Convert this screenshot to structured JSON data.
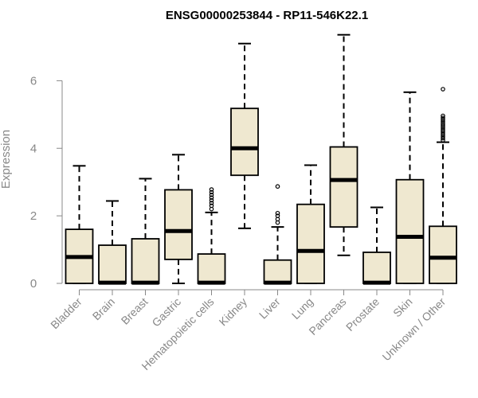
{
  "chart_data": {
    "type": "boxplot",
    "title": "ENSG00000253844 - RP11-546K22.1",
    "ylabel": "Expression",
    "xlabel": "",
    "ylim": [
      0,
      7.4
    ],
    "yticks": [
      0,
      2,
      4,
      6
    ],
    "box_fill": "#efe8d0",
    "categories": [
      "Bladder",
      "Brain",
      "Breast",
      "Gastric",
      "Hematopoietic cells",
      "Kidney",
      "Liver",
      "Lung",
      "Pancreas",
      "Prostate",
      "Skin",
      "Unknown / Other"
    ],
    "boxes": [
      {
        "whisker_low": 0,
        "q1": 0,
        "median": 0.78,
        "q3": 1.6,
        "whisker_high": 3.48,
        "outliers": []
      },
      {
        "whisker_low": 0,
        "q1": 0,
        "median": 0.02,
        "q3": 1.13,
        "whisker_high": 2.44,
        "outliers": []
      },
      {
        "whisker_low": 0,
        "q1": 0,
        "median": 0.02,
        "q3": 1.32,
        "whisker_high": 3.1,
        "outliers": []
      },
      {
        "whisker_low": 0,
        "q1": 0.71,
        "median": 1.55,
        "q3": 2.77,
        "whisker_high": 3.81,
        "outliers": []
      },
      {
        "whisker_low": 0,
        "q1": 0,
        "median": 0.02,
        "q3": 0.87,
        "whisker_high": 2.1,
        "outliers": [
          2.2,
          2.3,
          2.38,
          2.46,
          2.54,
          2.62,
          2.7,
          2.78
        ]
      },
      {
        "whisker_low": 1.63,
        "q1": 3.2,
        "median": 4.0,
        "q3": 5.18,
        "whisker_high": 7.1,
        "outliers": []
      },
      {
        "whisker_low": 0,
        "q1": 0,
        "median": 0.02,
        "q3": 0.69,
        "whisker_high": 1.67,
        "outliers": [
          1.8,
          1.9,
          2.0,
          2.08,
          2.87
        ]
      },
      {
        "whisker_low": 0,
        "q1": 0,
        "median": 0.96,
        "q3": 2.34,
        "whisker_high": 3.5,
        "outliers": []
      },
      {
        "whisker_low": 0.83,
        "q1": 1.67,
        "median": 3.06,
        "q3": 4.04,
        "whisker_high": 7.36,
        "outliers": []
      },
      {
        "whisker_low": 0,
        "q1": 0,
        "median": 0.02,
        "q3": 0.92,
        "whisker_high": 2.25,
        "outliers": []
      },
      {
        "whisker_low": 0,
        "q1": 0,
        "median": 1.38,
        "q3": 3.07,
        "whisker_high": 5.66,
        "outliers": []
      },
      {
        "whisker_low": 0,
        "q1": 0,
        "median": 0.76,
        "q3": 1.69,
        "whisker_high": 4.18,
        "outliers": [
          4.24,
          4.3,
          4.36,
          4.42,
          4.48,
          4.54,
          4.6,
          4.66,
          4.72,
          4.78,
          4.84,
          4.9,
          4.96,
          5.75
        ]
      }
    ]
  }
}
